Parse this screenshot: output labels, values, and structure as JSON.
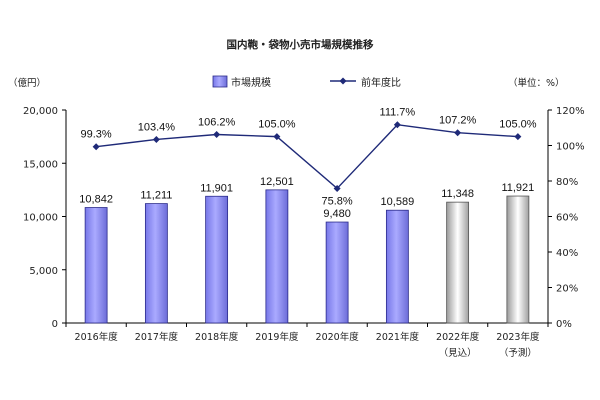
{
  "chart_data": {
    "type": "bar",
    "title": "国内鞄・袋物小売市場規模推移",
    "left_unit": "（億円）",
    "right_unit": "（単位：%）",
    "categories": [
      "2016年度",
      "2017年度",
      "2018年度",
      "2019年度",
      "2020年度",
      "2021年度",
      "2022年度",
      "2023年度"
    ],
    "category_notes": [
      "",
      "",
      "",
      "",
      "",
      "",
      "（見込）",
      "（予測）"
    ],
    "series": [
      {
        "name": "市場規模",
        "axis": "left",
        "values": [
          10842,
          11211,
          11901,
          12501,
          9480,
          10589,
          11348,
          11921
        ],
        "labels": [
          "10,842",
          "11,211",
          "11,901",
          "12,501",
          "9,480",
          "10,589",
          "11,348",
          "11,921"
        ],
        "estimated_from_index": 6
      },
      {
        "name": "前年度比",
        "axis": "right",
        "type": "line",
        "values": [
          99.3,
          103.4,
          106.2,
          105.0,
          75.8,
          111.7,
          107.2,
          105.0
        ],
        "labels": [
          "99.3%",
          "103.4%",
          "106.2%",
          "105.0%",
          "75.8%",
          "111.7%",
          "107.2%",
          "105.0%"
        ]
      }
    ],
    "y_left": {
      "min": 0,
      "max": 20000,
      "ticks": [
        0,
        5000,
        10000,
        15000,
        20000
      ],
      "tick_labels": [
        "0",
        "5,000",
        "10,000",
        "15,000",
        "20,000"
      ]
    },
    "y_right": {
      "min": 0,
      "max": 120,
      "ticks": [
        0,
        20,
        40,
        60,
        80,
        100,
        120
      ],
      "tick_labels": [
        "0%",
        "20%",
        "40%",
        "60%",
        "80%",
        "100%",
        "120%"
      ]
    },
    "legend_position": "top",
    "grid": false,
    "colors": {
      "bar_actual": "#9999ff",
      "bar_actual_edge": "#2b2b8a",
      "bar_estimate_light": "#ffffff",
      "bar_estimate_dark": "#b5b5b5",
      "bar_estimate_edge": "#555555",
      "line": "#1f2a78",
      "axis": "#000000"
    }
  }
}
